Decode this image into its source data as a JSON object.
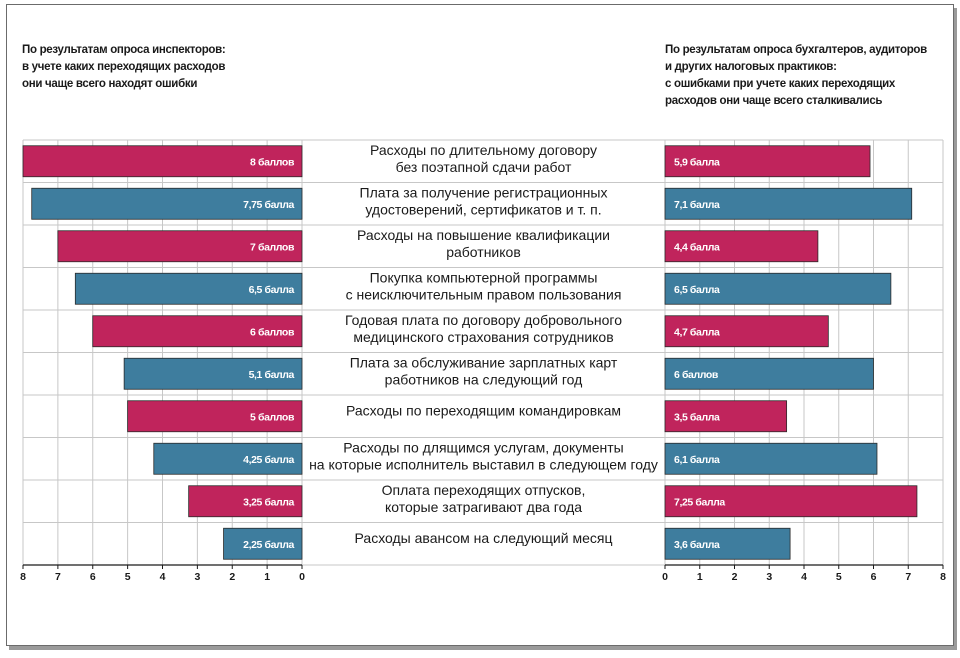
{
  "headers": {
    "left": "По результатам опроса инспекторов:\nв учете каких переходящих расходов\nони чаще всего находят ошибки",
    "right": "По результатам опроса бухгалтеров, аудиторов\nи других налоговых практиков:\nс ошибками при учете каких переходящих\nрасходов они чаще всего сталкивались"
  },
  "colors": {
    "crimson": "#c0245c",
    "teal": "#3e7d9e",
    "grid": "#c7c7c7",
    "axis": "#1a1a1a"
  },
  "chart_data": [
    {
      "type": "bar",
      "orientation": "horizontal",
      "direction": "right-to-left",
      "title": "По результатам опроса инспекторов: в учете каких переходящих расходов они чаще всего находят ошибки",
      "categories": [
        "Расходы по длительному договору без поэтапной сдачи работ",
        "Плата за получение регистрационных удостоверений, сертификатов и т. п.",
        "Расходы на повышение квалификации работников",
        "Покупка компьютерной программы с неисключительным правом пользования",
        "Годовая плата по договору добровольного медицинского страхования сотрудников",
        "Плата за обслуживание зарплатных карт работников на следующий год",
        "Расходы по переходящим командировкам",
        "Расходы по длящимся услугам, документы на которые исполнитель выставил в следующем году",
        "Оплата переходящих отпусков, которые затрагивают два года",
        "Расходы авансом на следующий месяц"
      ],
      "values": [
        8,
        7.75,
        7,
        6.5,
        6,
        5.1,
        5,
        4.25,
        3.25,
        2.25
      ],
      "labels": [
        "8 баллов",
        "7,75 балла",
        "7 баллов",
        "6,5 балла",
        "6 баллов",
        "5,1 балла",
        "5 баллов",
        "4,25 балла",
        "3,25 балла",
        "2,25 балла"
      ],
      "bar_colors": [
        "crimson",
        "teal",
        "crimson",
        "teal",
        "crimson",
        "teal",
        "crimson",
        "teal",
        "crimson",
        "teal"
      ],
      "xlim": [
        0,
        8
      ],
      "xticks": [
        "8",
        "7",
        "6",
        "5",
        "4",
        "3",
        "2",
        "1",
        "0"
      ],
      "grid": true
    },
    {
      "type": "bar",
      "orientation": "horizontal",
      "direction": "left-to-right",
      "title": "По результатам опроса бухгалтеров, аудиторов и других налоговых практиков: с ошибками при учете каких переходящих расходов они чаще всего сталкивались",
      "categories": [
        "Расходы по длительному договору без поэтапной сдачи работ",
        "Плата за получение регистрационных удостоверений, сертификатов и т. п.",
        "Расходы на повышение квалификации работников",
        "Покупка компьютерной программы с неисключительным правом пользования",
        "Годовая плата по договору добровольного медицинского страхования сотрудников",
        "Плата за обслуживание зарплатных карт работников на следующий год",
        "Расходы по переходящим командировкам",
        "Расходы по длящимся услугам, документы на которые исполнитель выставил в следующем году",
        "Оплата переходящих отпусков, которые затрагивают два года",
        "Расходы авансом на следующий месяц"
      ],
      "values": [
        5.9,
        7.1,
        4.4,
        6.5,
        4.7,
        6,
        3.5,
        6.1,
        7.25,
        3.6
      ],
      "labels": [
        "5,9 балла",
        "7,1 балла",
        "4,4 балла",
        "6,5 балла",
        "4,7 балла",
        "6 баллов",
        "3,5 балла",
        "6,1 балла",
        "7,25 балла",
        "3,6 балла"
      ],
      "bar_colors": [
        "crimson",
        "teal",
        "crimson",
        "teal",
        "crimson",
        "teal",
        "crimson",
        "teal",
        "crimson",
        "teal"
      ],
      "xlim": [
        0,
        8
      ],
      "xticks": [
        "0",
        "1",
        "2",
        "3",
        "4",
        "5",
        "6",
        "7",
        "8"
      ],
      "grid": true
    }
  ],
  "category_lines": [
    [
      "Расходы по длительному договору",
      "без поэтапной сдачи работ"
    ],
    [
      "Плата за получение регистрационных",
      "удостоверений, сертификатов и т. п."
    ],
    [
      "Расходы на повышение квалификации",
      "работников"
    ],
    [
      "Покупка компьютерной программы",
      "с неисключительным правом пользования"
    ],
    [
      "Годовая плата по договору добровольного",
      "медицинского страхования сотрудников"
    ],
    [
      "Плата за обслуживание зарплатных карт",
      "работников на следующий год"
    ],
    [
      "Расходы по переходящим командировкам"
    ],
    [
      "Расходы по длящимся услугам, документы",
      "на которые исполнитель выставил в следующем году"
    ],
    [
      "Оплата переходящих отпусков,",
      "которые затрагивают два года"
    ],
    [
      "Расходы авансом на следующий месяц"
    ]
  ]
}
